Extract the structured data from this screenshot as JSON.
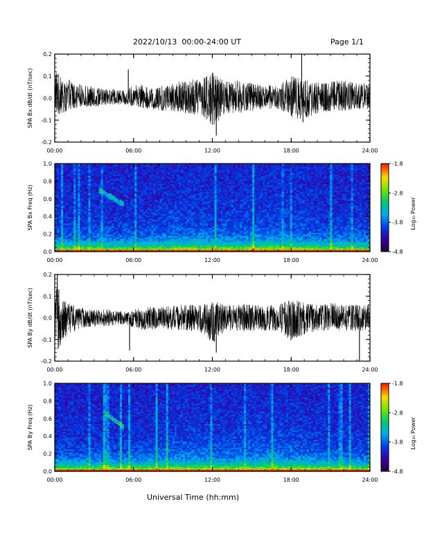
{
  "header": {
    "title": "2022/10/13  00:00-24:00 UT",
    "page": "Page 1/1"
  },
  "footer": {
    "xlabel": "Universal Time (hh:mm)"
  },
  "chart_data": [
    {
      "type": "line",
      "ylabel": "SPA Bx dB/dt (nT/sec)",
      "xlim": [
        "00:00",
        "24:00"
      ],
      "x_ticks": [
        "00:00",
        "06:00",
        "12:00",
        "18:00",
        "24:00"
      ],
      "ylim": [
        -0.2,
        0.2
      ],
      "y_ticks": [
        "-0.2",
        "-0.1",
        "0.0",
        "0.1",
        "0.2"
      ],
      "color": "#000000",
      "series": [
        {
          "x_hours": [
            0,
            0.5,
            1,
            2,
            3,
            4,
            5,
            5.5,
            6,
            7,
            8,
            9,
            10,
            11,
            12,
            13,
            14,
            15,
            16,
            17,
            18,
            19,
            20,
            21,
            22,
            23,
            24
          ],
          "envelope_max": [
            0.13,
            0.1,
            0.09,
            0.06,
            0.05,
            0.04,
            0.04,
            0.04,
            0.06,
            0.06,
            0.06,
            0.07,
            0.08,
            0.09,
            0.12,
            0.08,
            0.08,
            0.07,
            0.06,
            0.06,
            0.1,
            0.09,
            0.07,
            0.08,
            0.08,
            0.07,
            0.07
          ],
          "envelope_min": [
            -0.08,
            -0.07,
            -0.06,
            -0.04,
            -0.04,
            -0.03,
            -0.03,
            -0.03,
            -0.04,
            -0.05,
            -0.06,
            -0.06,
            -0.07,
            -0.08,
            -0.13,
            -0.08,
            -0.07,
            -0.06,
            -0.05,
            -0.05,
            -0.09,
            -0.1,
            -0.07,
            -0.06,
            -0.06,
            -0.05,
            -0.05
          ]
        }
      ],
      "spikes": [
        {
          "x_hours": 5.6,
          "y": 0.13
        },
        {
          "x_hours": 12.3,
          "y": -0.17
        },
        {
          "x_hours": 18.8,
          "y": 0.2
        },
        {
          "x_hours": 18.9,
          "y": -0.11
        }
      ]
    },
    {
      "type": "heatmap",
      "ylabel": "SPA Bx Freq (Hz)",
      "xlim": [
        "00:00",
        "24:00"
      ],
      "x_ticks": [
        "00:00",
        "06:00",
        "12:00",
        "18:00",
        "24:00"
      ],
      "ylim": [
        0.0,
        1.0
      ],
      "y_ticks": [
        "0.0",
        "0.2",
        "0.4",
        "0.6",
        "0.8",
        "1.0"
      ],
      "colorbar": {
        "label": "Log₁₀ Power",
        "min": -4.8,
        "max": -1.8,
        "ticks": [
          "-1.8",
          "-2.8",
          "-3.8",
          "-4.8"
        ]
      },
      "features": [
        {
          "kind": "diagonal_streak",
          "x_hours_start": 3.4,
          "x_hours_end": 5.3,
          "freq_start": 0.7,
          "freq_end": 0.53
        }
      ]
    },
    {
      "type": "line",
      "ylabel": "SPA By dB/dt (nT/sec)",
      "xlim": [
        "00:00",
        "24:00"
      ],
      "x_ticks": [
        "00:00",
        "06:00",
        "12:00",
        "18:00",
        "24:00"
      ],
      "ylim": [
        -0.2,
        0.2
      ],
      "y_ticks": [
        "-0.2",
        "-0.1",
        "0.0",
        "0.1",
        "0.2"
      ],
      "color": "#000000",
      "series": [
        {
          "x_hours": [
            0,
            0.5,
            1,
            2,
            3,
            4,
            5,
            5.5,
            6,
            7,
            8,
            9,
            10,
            11,
            12,
            13,
            14,
            15,
            16,
            17,
            18,
            19,
            20,
            21,
            22,
            23,
            24
          ],
          "envelope_max": [
            0.19,
            0.1,
            0.07,
            0.05,
            0.04,
            0.04,
            0.03,
            0.03,
            0.04,
            0.05,
            0.05,
            0.06,
            0.06,
            0.06,
            0.08,
            0.06,
            0.07,
            0.06,
            0.06,
            0.06,
            0.09,
            0.07,
            0.06,
            0.07,
            0.06,
            0.06,
            0.06
          ],
          "envelope_min": [
            -0.19,
            -0.12,
            -0.08,
            -0.05,
            -0.04,
            -0.04,
            -0.03,
            -0.03,
            -0.05,
            -0.06,
            -0.05,
            -0.06,
            -0.06,
            -0.06,
            -0.12,
            -0.06,
            -0.06,
            -0.06,
            -0.06,
            -0.06,
            -0.11,
            -0.08,
            -0.06,
            -0.06,
            -0.06,
            -0.06,
            -0.06
          ]
        }
      ],
      "spikes": [
        {
          "x_hours": 0.2,
          "y": 0.2
        },
        {
          "x_hours": 5.7,
          "y": -0.15
        },
        {
          "x_hours": 12.3,
          "y": -0.16
        },
        {
          "x_hours": 23.2,
          "y": -0.2
        }
      ]
    },
    {
      "type": "heatmap",
      "ylabel": "SPA By Freq (Hz)",
      "xlim": [
        "00:00",
        "24:00"
      ],
      "x_ticks": [
        "00:00",
        "06:00",
        "12:00",
        "18:00",
        "24:00"
      ],
      "ylim": [
        0.0,
        1.0
      ],
      "y_ticks": [
        "0.0",
        "0.2",
        "0.4",
        "0.6",
        "0.8",
        "1.0"
      ],
      "colorbar": {
        "label": "Log₁₀ Power",
        "min": -4.8,
        "max": -1.8,
        "ticks": [
          "-1.8",
          "-2.8",
          "-3.8",
          "-4.8"
        ]
      },
      "features": [
        {
          "kind": "diagonal_streak",
          "x_hours_start": 3.8,
          "x_hours_end": 5.3,
          "freq_start": 0.67,
          "freq_end": 0.5
        }
      ]
    }
  ]
}
